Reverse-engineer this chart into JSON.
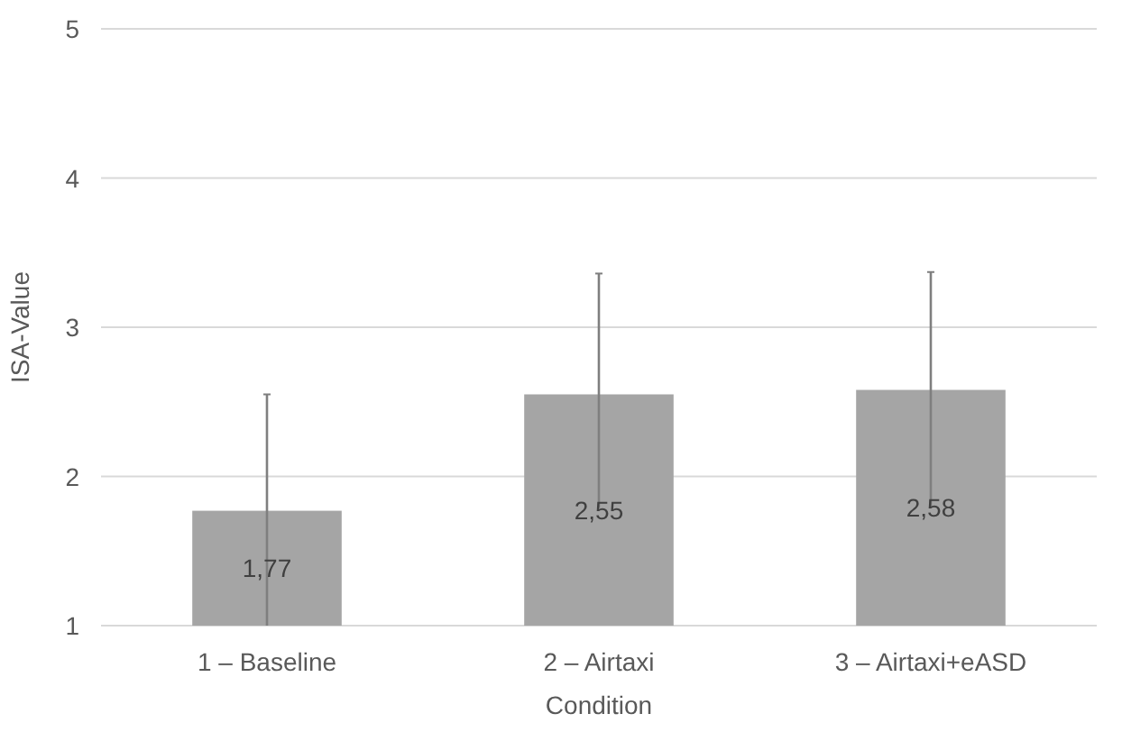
{
  "chart_data": {
    "type": "bar",
    "xlabel": "Condition",
    "ylabel": "ISA-Value",
    "categories": [
      "1 – Baseline",
      "2 – Airtaxi",
      "3 – Airtaxi+eASD"
    ],
    "values": [
      1.77,
      2.55,
      2.58
    ],
    "color": "#a5a5a5",
    "errors": [
      [
        1,
        2.55
      ],
      [
        1.79,
        3.36
      ],
      [
        1.79,
        3.37
      ]
    ],
    "value_labels": [
      "1,77",
      "2,55",
      "2,58"
    ],
    "ylim": [
      1,
      5
    ],
    "yticks": [
      1,
      2,
      3,
      4,
      5
    ],
    "grid": "y"
  }
}
